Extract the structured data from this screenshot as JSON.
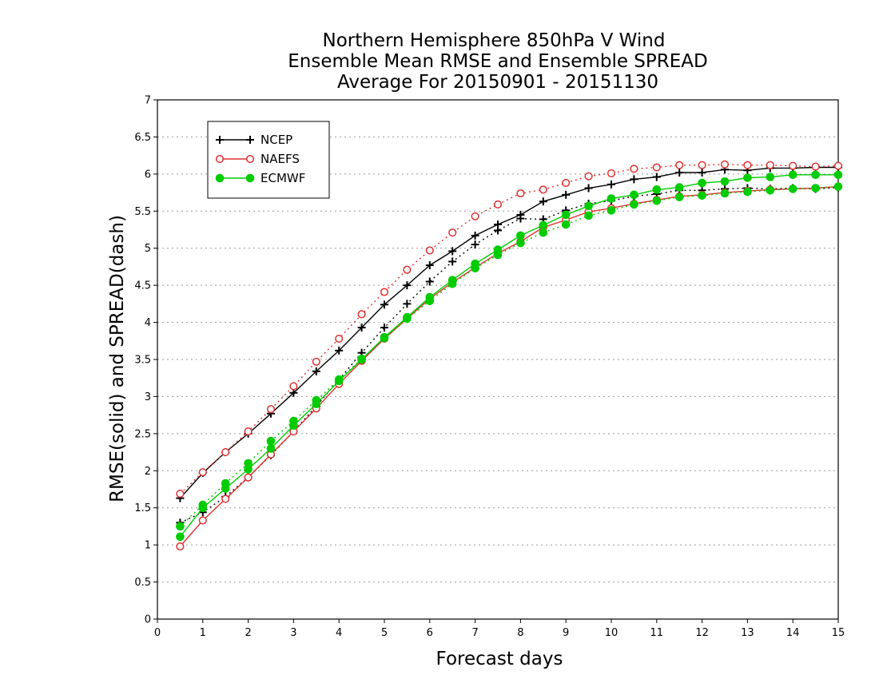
{
  "chart_data": {
    "type": "line",
    "title": [
      "Northern Hemisphere 850hPa V Wind",
      "Ensemble Mean RMSE and Ensemble SPREAD",
      "Average For 20150901 - 20151130"
    ],
    "xlabel": "Forecast days",
    "ylabel": "RMSE(solid) and SPREAD(dash)",
    "xlim": [
      0,
      15
    ],
    "ylim": [
      0,
      7
    ],
    "xticks": [
      0,
      1,
      2,
      3,
      4,
      5,
      6,
      7,
      8,
      9,
      10,
      11,
      12,
      13,
      14,
      15
    ],
    "yticks": [
      "0",
      "0.5",
      "1",
      "1.5",
      "2",
      "2.5",
      "3",
      "3.5",
      "4",
      "4.5",
      "5",
      "5.5",
      "6",
      "6.5",
      "7"
    ],
    "grid": "horizontal dotted",
    "legend_position": "top-left",
    "x": [
      0.5,
      1,
      1.5,
      2,
      2.5,
      3,
      3.5,
      4,
      4.5,
      5,
      5.5,
      6,
      6.5,
      7,
      7.5,
      8,
      8.5,
      9,
      9.5,
      10,
      10.5,
      11,
      11.5,
      12,
      12.5,
      13,
      13.5,
      14,
      14.5,
      15
    ],
    "series": [
      {
        "name": "NCEP",
        "color": "#000000",
        "marker": "plus",
        "rmse": [
          1.63,
          1.97,
          2.25,
          2.5,
          2.77,
          3.05,
          3.34,
          3.62,
          3.93,
          4.24,
          4.5,
          4.77,
          4.96,
          5.17,
          5.32,
          5.45,
          5.63,
          5.72,
          5.81,
          5.86,
          5.93,
          5.96,
          6.02,
          6.02,
          6.06,
          6.05,
          6.08,
          6.08,
          6.09,
          6.09
        ],
        "spread": [
          1.3,
          1.44,
          1.65,
          1.91,
          2.21,
          2.53,
          2.87,
          3.23,
          3.59,
          3.93,
          4.25,
          4.55,
          4.82,
          5.05,
          5.24,
          5.4,
          5.39,
          5.51,
          5.6,
          5.64,
          5.7,
          5.73,
          5.78,
          5.78,
          5.8,
          5.81,
          5.8,
          5.81,
          5.8,
          5.82
        ]
      },
      {
        "name": "NAEFS",
        "color": "#e03131",
        "marker": "open-circle",
        "rmse": [
          0.98,
          1.33,
          1.62,
          1.91,
          2.22,
          2.53,
          2.84,
          3.17,
          3.48,
          3.78,
          4.05,
          4.32,
          4.54,
          4.74,
          4.93,
          5.09,
          5.28,
          5.38,
          5.49,
          5.54,
          5.6,
          5.65,
          5.7,
          5.72,
          5.75,
          5.77,
          5.79,
          5.8,
          5.81,
          5.83
        ],
        "spread": [
          1.69,
          1.98,
          2.25,
          2.53,
          2.83,
          3.14,
          3.47,
          3.78,
          4.11,
          4.41,
          4.71,
          4.97,
          5.21,
          5.43,
          5.59,
          5.74,
          5.79,
          5.88,
          5.97,
          6.01,
          6.07,
          6.09,
          6.12,
          6.12,
          6.13,
          6.12,
          6.12,
          6.11,
          6.1,
          6.11
        ]
      },
      {
        "name": "ECMWF",
        "color": "#00cc00",
        "marker": "filled-circle",
        "rmse": [
          1.11,
          1.5,
          1.76,
          2.02,
          2.3,
          2.61,
          2.9,
          3.21,
          3.5,
          3.8,
          4.07,
          4.34,
          4.57,
          4.79,
          4.98,
          5.17,
          5.31,
          5.45,
          5.57,
          5.67,
          5.72,
          5.79,
          5.82,
          5.88,
          5.9,
          5.95,
          5.96,
          5.99,
          5.99,
          5.99
        ],
        "spread": [
          1.25,
          1.54,
          1.83,
          2.1,
          2.4,
          2.67,
          2.95,
          3.23,
          3.51,
          3.79,
          4.05,
          4.29,
          4.52,
          4.73,
          4.91,
          5.07,
          5.21,
          5.32,
          5.44,
          5.51,
          5.59,
          5.64,
          5.69,
          5.71,
          5.74,
          5.76,
          5.78,
          5.8,
          5.81,
          5.83
        ]
      }
    ]
  }
}
